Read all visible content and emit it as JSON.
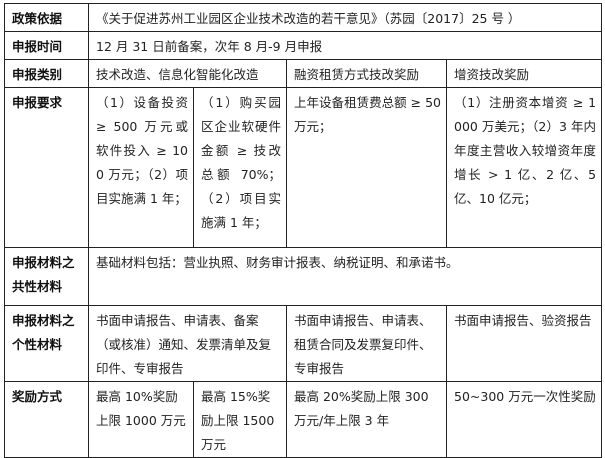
{
  "rows": {
    "basis": {
      "label": "政策依据",
      "value": "《关于促进苏州工业园区企业技术改造的若干意见》（苏园〔2017〕25 号 ）"
    },
    "time": {
      "label": "申报时间",
      "value": "12 月 31 日前备案，次年 8 月-9 月申报"
    },
    "category": {
      "label": "申报类别",
      "values": [
        "技术改造、信息化智能化改造",
        "融资租赁方式技改奖励",
        "增资技改奖励"
      ]
    },
    "requirements": {
      "label": "申报要求",
      "values": [
        "（1）设备投资 ≥ 500 万元或软件投入 ≥ 100 万元；（2）项目实施满 1 年；",
        "（1）购买园区企业软硬件金额 ≥ 技改总额 70%；（2）项目实施满 1 年；",
        "上年设备租赁费总额 ≥ 50 万元；",
        "（1）注册资本增资 ≥ 1000 万美元；（2）3 年内年度主营收入较增资年度增长 > 1 亿、2 亿、5 亿、10 亿元；"
      ]
    },
    "common_materials": {
      "label": "申报材料之共性材料",
      "value": "基础材料包括：营业执照、财务审计报表、纳税证明、和承诺书。"
    },
    "specific_materials": {
      "label": "申报材料之个性材料",
      "values": [
        "书面申请报告、申请表、备案（或核准）通知、发票清单及复印件、专审报告",
        "书面申请报告、申请表、租赁合同及发票复印件、专审报告",
        "书面申请报告、验资报告"
      ]
    },
    "reward": {
      "label": "奖励方式",
      "values": [
        "最高 10%奖励上限 1000 万元",
        "最高 15%奖励上限 1500 万元",
        "最高 20%奖励上限 300 万元/年上限 3 年",
        "50~300 万元一次性奖励"
      ]
    }
  }
}
